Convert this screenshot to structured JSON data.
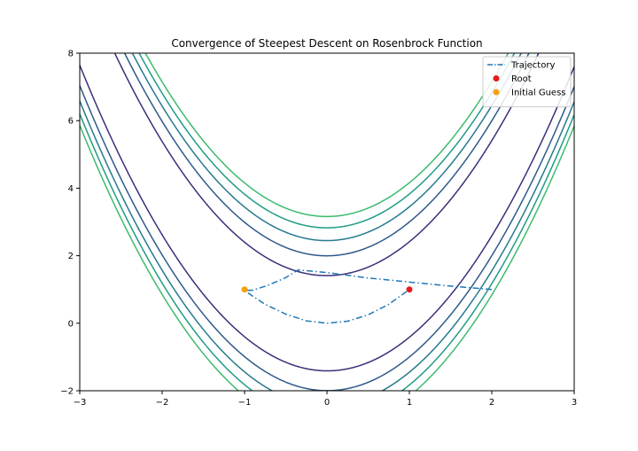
{
  "chart_data": {
    "type": "line",
    "title": "Convergence of Steepest Descent on Rosenbrock Function",
    "xlabel": "",
    "ylabel": "",
    "xlim": [
      -3,
      3
    ],
    "ylim": [
      -2,
      8
    ],
    "xticks": [
      -3,
      -2,
      -1,
      0,
      1,
      2,
      3
    ],
    "yticks": [
      -2,
      0,
      2,
      4,
      6,
      8
    ],
    "grid": false,
    "legend": {
      "placement": "top-right",
      "entries": [
        {
          "label": "Trajectory",
          "kind": "dashdot-line",
          "color": "#1f77b4"
        },
        {
          "label": "Root",
          "kind": "marker",
          "color": "#e41a1c"
        },
        {
          "label": "Initial Guess",
          "kind": "marker",
          "color": "#f5a10c"
        }
      ]
    },
    "contours": {
      "function": "rosenbrock",
      "levels": [
        {
          "value": 200,
          "color": "#3b2f7a"
        },
        {
          "value": 400,
          "color": "#2e5a8a"
        },
        {
          "value": 600,
          "color": "#26798e"
        },
        {
          "value": 800,
          "color": "#1f9b86"
        },
        {
          "value": 1000,
          "color": "#3dbb6c"
        }
      ]
    },
    "series": [
      {
        "name": "Trajectory",
        "color": "#1f77b4",
        "style": "dashdot",
        "points": [
          [
            2.0,
            1.0
          ],
          [
            1.5,
            1.1
          ],
          [
            1.0,
            1.22
          ],
          [
            0.5,
            1.34
          ],
          [
            0.0,
            1.5
          ],
          [
            -0.35,
            1.58
          ],
          [
            -0.5,
            1.35
          ],
          [
            -0.72,
            1.12
          ],
          [
            -0.9,
            0.98
          ],
          [
            -1.0,
            0.97
          ],
          [
            -0.9,
            0.8
          ],
          [
            -0.75,
            0.56
          ],
          [
            -0.5,
            0.27
          ],
          [
            -0.25,
            0.07
          ],
          [
            0.0,
            0.0
          ],
          [
            0.25,
            0.06
          ],
          [
            0.5,
            0.25
          ],
          [
            0.75,
            0.56
          ],
          [
            1.0,
            1.0
          ]
        ]
      }
    ],
    "markers": [
      {
        "name": "Root",
        "x": 1.0,
        "y": 1.0,
        "color": "#e41a1c"
      },
      {
        "name": "Initial Guess",
        "x": -1.0,
        "y": 1.0,
        "color": "#f5a10c"
      }
    ]
  }
}
